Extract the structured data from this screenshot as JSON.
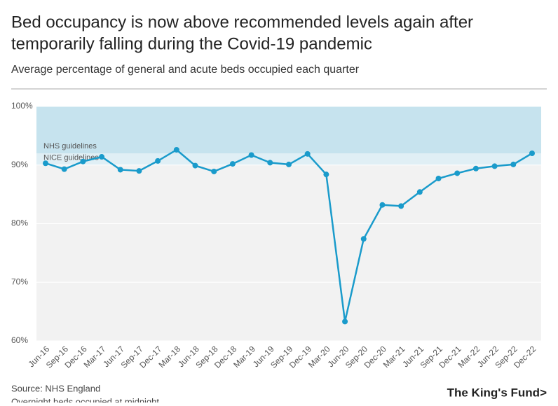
{
  "chart_data": {
    "type": "line",
    "title": [
      "Bed occupancy is now above recommended levels again after",
      "temporarily falling during the Covid-19 pandemic"
    ],
    "subtitle": "Average percentage of general and acute beds occupied each quarter",
    "categories": [
      "Jun-16",
      "Sep-16",
      "Dec-16",
      "Mar-17",
      "Jun-17",
      "Sep-17",
      "Dec-17",
      "Mar-18",
      "Jun-18",
      "Sep-18",
      "Dec-18",
      "Mar-19",
      "Jun-19",
      "Sep-19",
      "Dec-19",
      "Mar-20",
      "Jun-20",
      "Sep-20",
      "Dec-20",
      "Mar-21",
      "Jun-21",
      "Sep-21",
      "Dec-21",
      "Mar-22",
      "Jun-22",
      "Sep-22",
      "Dec-22"
    ],
    "series": [
      {
        "color": "#1a9bcb",
        "values": [
          90.3,
          89.3,
          90.6,
          91.4,
          89.2,
          89.0,
          90.7,
          92.6,
          89.9,
          88.9,
          90.2,
          91.7,
          90.4,
          90.1,
          91.9,
          88.4,
          63.3,
          77.4,
          83.2,
          83.0,
          85.4,
          87.7,
          88.6,
          89.4,
          89.8,
          90.1,
          92.0
        ]
      }
    ],
    "bands": [
      {
        "label": "NHS guidelines",
        "from": 92,
        "to": 100,
        "color": "#c6e3ee"
      },
      {
        "label": "NICE guidelines",
        "from": 90,
        "to": 92,
        "color": "#e0eff5"
      }
    ],
    "ylim": [
      60,
      100
    ],
    "yticks": [
      {
        "value": 60,
        "label": "60%"
      },
      {
        "value": 70,
        "label": "70%"
      },
      {
        "value": 80,
        "label": "80%"
      },
      {
        "value": 90,
        "label": "90%"
      },
      {
        "value": 100,
        "label": "100%"
      }
    ],
    "grid": true,
    "source": "Source: NHS England",
    "note": "Overnight beds occupied at midnight",
    "brand": "The King's Fund>"
  }
}
